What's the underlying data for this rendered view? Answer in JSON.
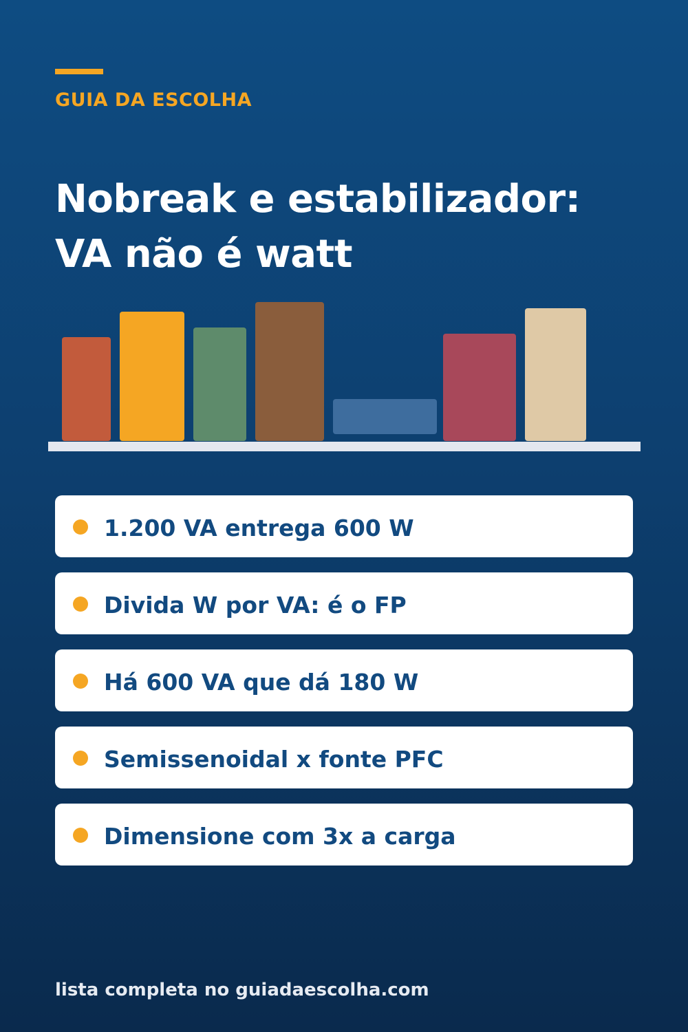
{
  "header": {
    "brand": "GUIA DA ESCOLHA",
    "title_line1": "Nobreak e estabilizador:",
    "title_line2": "VA não é watt"
  },
  "illustration": {
    "book_colors": [
      "#c25b3c",
      "#f5a623",
      "#5e8b6b",
      "#8a5d3c",
      "#3e6d9e",
      "#a8485a",
      "#dfc9a6"
    ],
    "shelf_color": "#e3e7ef"
  },
  "tips": [
    "1.200 VA entrega 600 W",
    "Divida W por VA: é o FP",
    "Há 600 VA que dá 180 W",
    "Semissenoidal x fonte PFC",
    "Dimensione com 3x a carga"
  ],
  "footer": "lista completa no guiadaescolha.com",
  "colors": {
    "accent": "#f5a623",
    "card_text": "#124a80",
    "background_top": "#0e4c82",
    "background_bottom": "#0a2a4d"
  }
}
